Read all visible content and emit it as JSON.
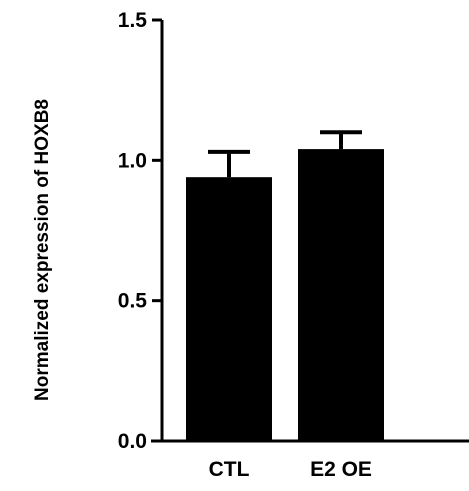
{
  "chart_data": {
    "type": "bar",
    "title": "",
    "xlabel": "",
    "ylabel": "Normalized expression of HOXB8",
    "categories": [
      "CTL",
      "E2 OE"
    ],
    "values": [
      0.94,
      1.04
    ],
    "error": [
      0.09,
      0.06
    ],
    "ylim": [
      0,
      1.5
    ],
    "yticks": [
      "0.0",
      "0.5",
      "1.0",
      "1.5"
    ],
    "grid": false,
    "legend": "none",
    "bar_color": "#000000"
  }
}
